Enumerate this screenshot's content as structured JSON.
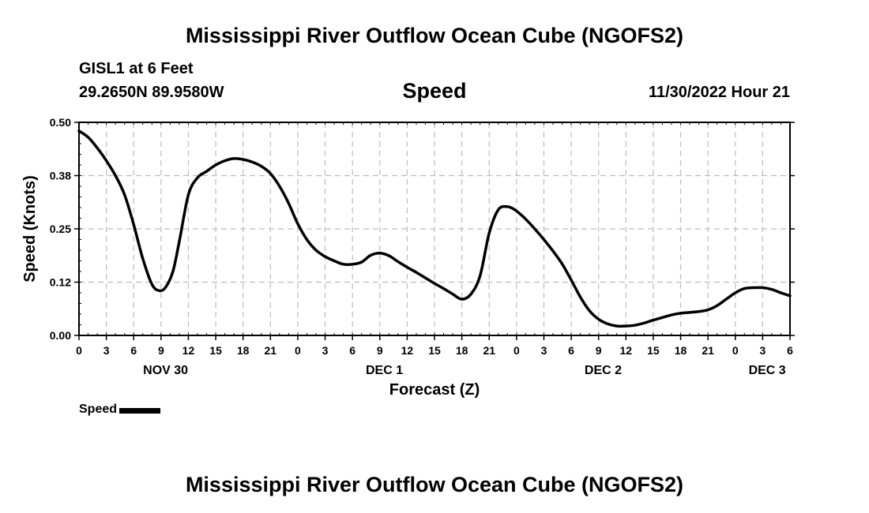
{
  "header": {
    "title": "Mississippi River Outflow Ocean Cube (NGOFS2)",
    "station": "GISL1 at 6 Feet",
    "coords": "29.2650N  89.9580W",
    "plot_title": "Speed",
    "datetime": "11/30/2022 Hour 21"
  },
  "footer": {
    "title": "Mississippi River Outflow Ocean Cube (NGOFS2)"
  },
  "legend": {
    "label": "Speed"
  },
  "chart_data": {
    "type": "line",
    "title": "Speed",
    "xlabel": "Forecast (Z)",
    "ylabel": "Speed (Knots)",
    "xlim": [
      0,
      78
    ],
    "ylim": [
      0,
      0.5
    ],
    "y_ticks": [
      0,
      0.125,
      0.25,
      0.375,
      0.5
    ],
    "y_tick_labels": [
      "0.00",
      "0.12",
      "0.25",
      "0.38",
      "0.50"
    ],
    "x_ticks": [
      0,
      3,
      6,
      9,
      12,
      15,
      18,
      21,
      24,
      27,
      30,
      33,
      36,
      39,
      42,
      45,
      48,
      51,
      54,
      57,
      60,
      63,
      66,
      69,
      72,
      75,
      78
    ],
    "x_tick_labels": [
      "0",
      "3",
      "6",
      "9",
      "12",
      "15",
      "18",
      "21",
      "0",
      "3",
      "6",
      "9",
      "12",
      "15",
      "18",
      "21",
      "0",
      "3",
      "6",
      "9",
      "12",
      "15",
      "18",
      "21",
      "0",
      "3",
      "6"
    ],
    "day_labels": [
      {
        "x": 9.5,
        "label": "NOV 30"
      },
      {
        "x": 33.5,
        "label": "DEC 1"
      },
      {
        "x": 57.5,
        "label": "DEC 2"
      },
      {
        "x": 75.5,
        "label": "DEC 3"
      }
    ],
    "grid": true,
    "series": [
      {
        "name": "Speed",
        "color": "#000000",
        "x": [
          0,
          1,
          2,
          3,
          4,
          5,
          6,
          7,
          8,
          8.8,
          9.5,
          10.3,
          11,
          12,
          13,
          14,
          15,
          16,
          17,
          18,
          19,
          20,
          21,
          22,
          23,
          24,
          25,
          26,
          27,
          28,
          29,
          30,
          31,
          32,
          33,
          34,
          35,
          36,
          37,
          38,
          39,
          40,
          41,
          42,
          43,
          44,
          45,
          46,
          47,
          47.8,
          48.5,
          49,
          50,
          51,
          52,
          53,
          54,
          55,
          56,
          57,
          58,
          59,
          60,
          61,
          62,
          63,
          64,
          65,
          66,
          67,
          68,
          69,
          70,
          71,
          72,
          73,
          74,
          75,
          76,
          77,
          78
        ],
        "values": [
          0.48,
          0.465,
          0.44,
          0.41,
          0.375,
          0.33,
          0.26,
          0.18,
          0.12,
          0.105,
          0.113,
          0.15,
          0.22,
          0.33,
          0.37,
          0.385,
          0.4,
          0.41,
          0.415,
          0.413,
          0.407,
          0.397,
          0.38,
          0.35,
          0.31,
          0.262,
          0.225,
          0.2,
          0.185,
          0.175,
          0.167,
          0.167,
          0.172,
          0.188,
          0.193,
          0.187,
          0.173,
          0.16,
          0.148,
          0.135,
          0.122,
          0.11,
          0.097,
          0.085,
          0.097,
          0.14,
          0.24,
          0.295,
          0.302,
          0.295,
          0.283,
          0.273,
          0.25,
          0.225,
          0.198,
          0.168,
          0.13,
          0.09,
          0.058,
          0.038,
          0.027,
          0.022,
          0.022,
          0.024,
          0.029,
          0.036,
          0.042,
          0.048,
          0.052,
          0.054,
          0.056,
          0.06,
          0.07,
          0.085,
          0.1,
          0.11,
          0.112,
          0.112,
          0.108,
          0.1,
          0.093
        ]
      }
    ]
  }
}
